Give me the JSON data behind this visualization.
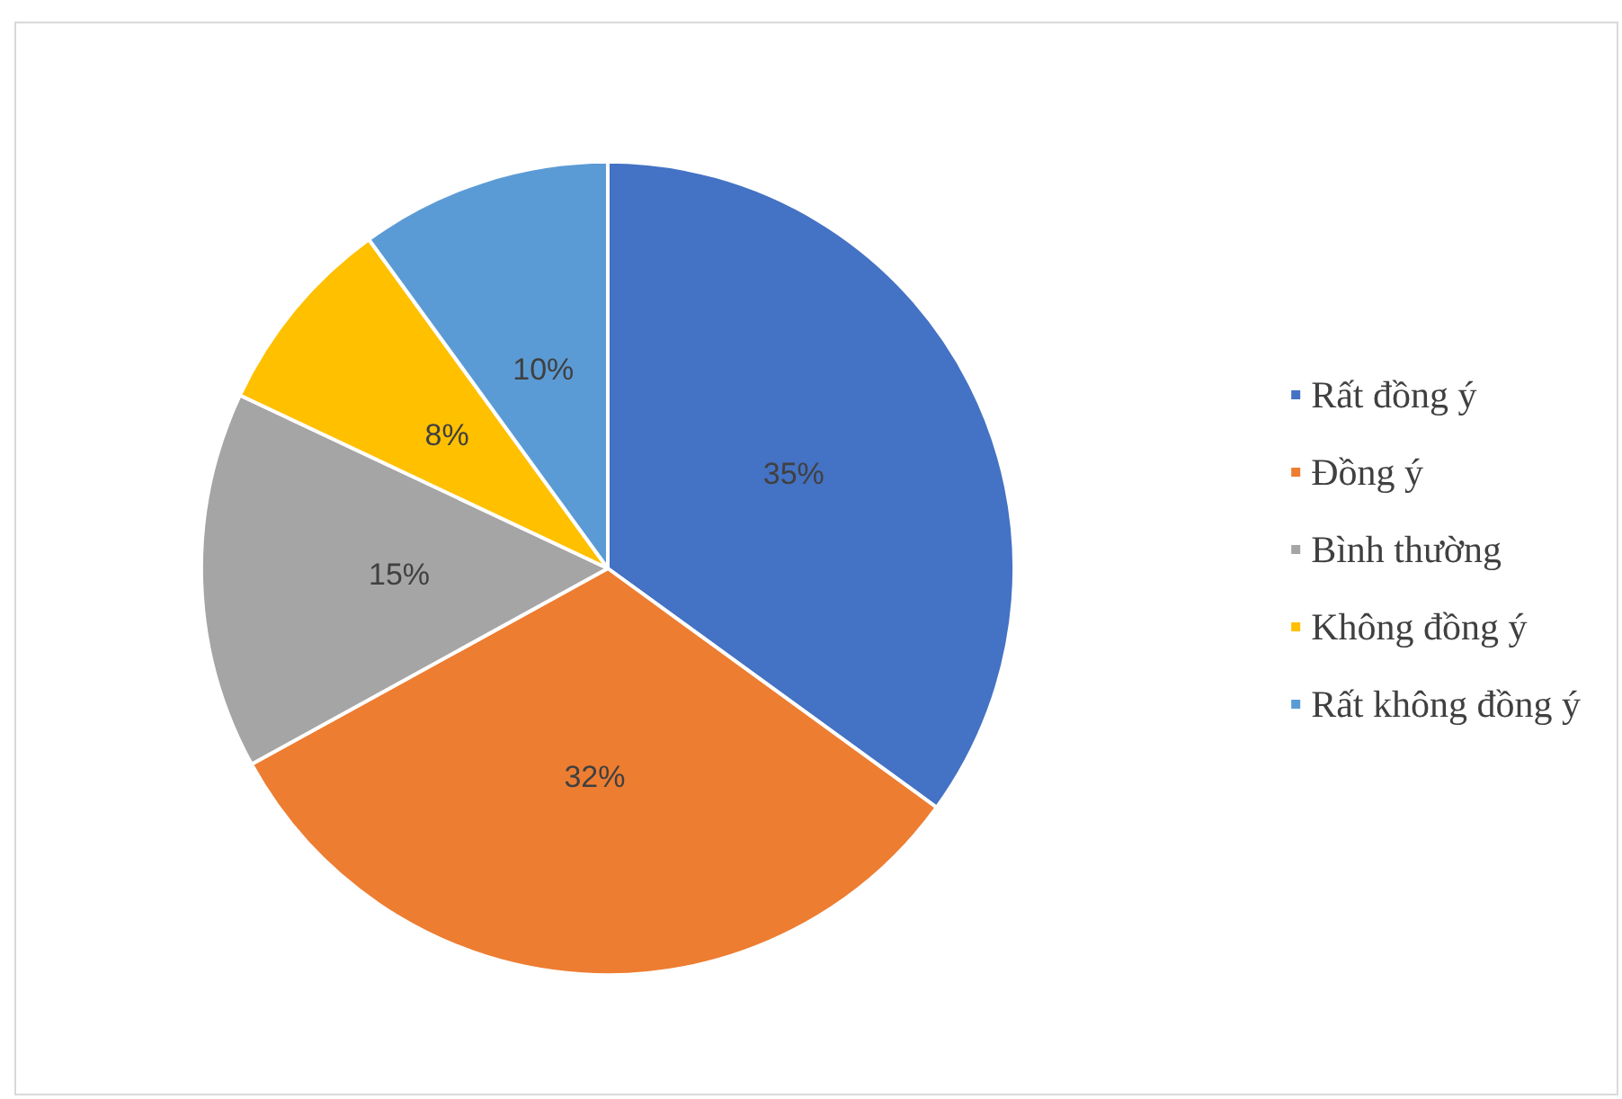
{
  "chart_data": {
    "type": "pie",
    "categories": [
      "Rất đồng ý",
      "Đồng ý",
      "Bình thường",
      "Không đồng ý",
      "Rất không đồng ý"
    ],
    "values": [
      35,
      32,
      15,
      8,
      10
    ],
    "colors": [
      "#4472c4",
      "#ed7d31",
      "#a5a5a5",
      "#ffc000",
      "#5b9bd5"
    ],
    "value_labels": [
      "35%",
      "32%",
      "15%",
      "8%",
      "10%"
    ],
    "legend": "right"
  }
}
